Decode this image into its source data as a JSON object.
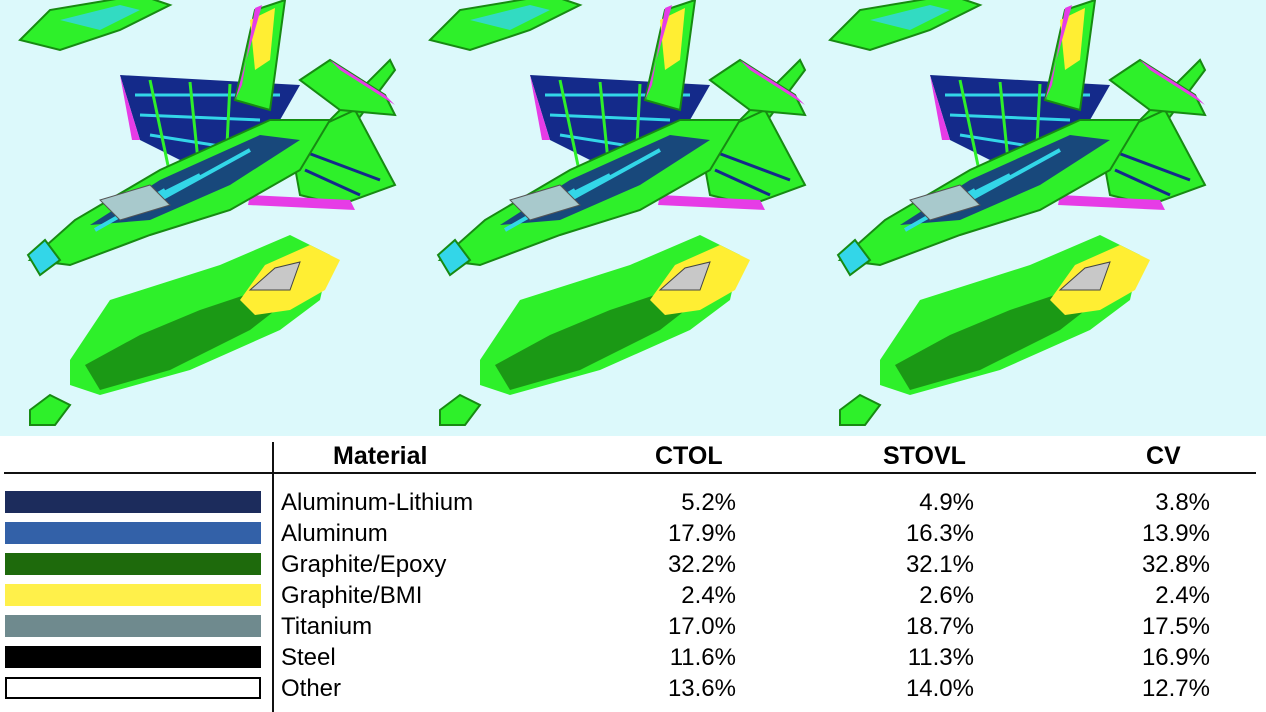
{
  "chart_data": {
    "type": "table",
    "columns": [
      "Material",
      "CTOL",
      "STOVL",
      "CV"
    ],
    "rows": [
      {
        "material": "Aluminum-Lithium",
        "color": "#1c2c5c",
        "CTOL": "5.2%",
        "STOVL": "4.9%",
        "CV": "3.8%"
      },
      {
        "material": "Aluminum",
        "color": "#3361a8",
        "CTOL": "17.9%",
        "STOVL": "16.3%",
        "CV": "13.9%"
      },
      {
        "material": "Graphite/Epoxy",
        "color": "#1e6a0c",
        "CTOL": "32.2%",
        "STOVL": "32.1%",
        "CV": "32.8%"
      },
      {
        "material": "Graphite/BMI",
        "color": "#fff04a",
        "CTOL": "2.4%",
        "STOVL": "2.6%",
        "CV": "2.4%"
      },
      {
        "material": "Titanium",
        "color": "#6f8a8e",
        "CTOL": "17.0%",
        "STOVL": "18.7%",
        "CV": "17.5%"
      },
      {
        "material": "Steel",
        "color": "#000000",
        "CTOL": "11.6%",
        "STOVL": "11.3%",
        "CV": "16.9%"
      },
      {
        "material": "Other",
        "color": "#ffffff",
        "CTOL": "13.6%",
        "STOVL": "14.0%",
        "CV": "12.7%"
      }
    ]
  },
  "colors": {
    "scene_background": "#dcf9fb",
    "airframe_bright_green": "#2ef02a",
    "airframe_dark_green": "#178a12",
    "airframe_navy": "#142a8a",
    "airframe_cyan": "#33d6e8",
    "airframe_magenta": "#e63ce6",
    "airframe_yellow": "#ffee33"
  },
  "illustrations": [
    "aircraft-structure-ctol",
    "aircraft-structure-stovl",
    "aircraft-structure-cv"
  ]
}
